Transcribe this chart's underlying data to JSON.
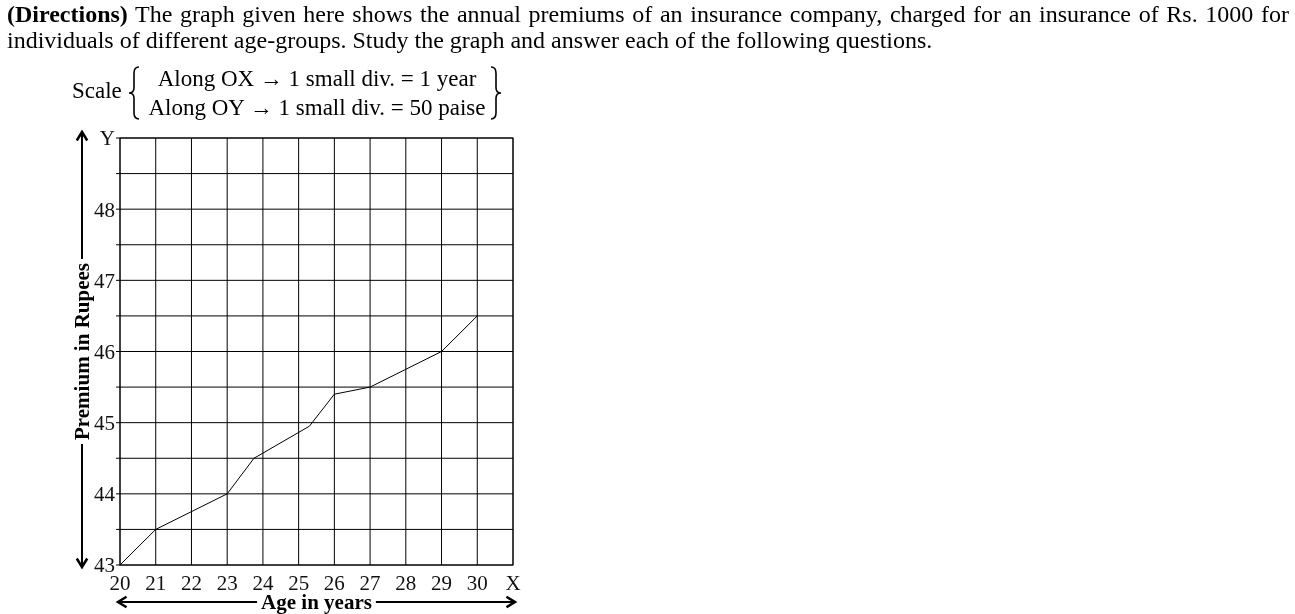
{
  "chart_data": {
    "type": "line",
    "title": "(Directions)",
    "subtitle": "The graph given here shows the annual premiums of an insurance company, charged for an insurance of Rs. 1000 for individuals of different age-groups. Study the graph and answer each of the following questions.",
    "xlabel": "Age in years",
    "ylabel": "Premium in Rupees",
    "annotations": [
      "Scale",
      "Along OX → 1 small div. = 1 year",
      "Along OY → 1 small div. = 50 paise"
    ],
    "x": [
      20,
      21,
      22,
      23,
      23.75,
      25.3,
      26,
      27,
      28,
      29,
      30
    ],
    "series": [
      {
        "color": "#000000",
        "values": [
          43,
          43.5,
          43.75,
          44,
          44.5,
          44.95,
          45.4,
          45.5,
          45.75,
          46,
          46.5
        ]
      }
    ],
    "xlim": [
      20,
      31
    ],
    "ylim": [
      43,
      49
    ],
    "xticks": [
      20,
      21,
      22,
      23,
      24,
      25,
      26,
      27,
      28,
      29,
      30,
      {
        "value": 31,
        "label": "X"
      }
    ],
    "yticks": [
      43,
      {
        "value": 43.5,
        "label": null
      },
      44,
      {
        "value": 44.5,
        "label": null
      },
      45,
      {
        "value": 45.5,
        "label": null
      },
      46,
      {
        "value": 46.5,
        "label": null
      },
      47,
      {
        "value": 47.5,
        "label": null
      },
      48,
      {
        "value": 48.5,
        "label": null
      },
      {
        "value": 49,
        "label": "Y"
      }
    ],
    "grid": true
  }
}
